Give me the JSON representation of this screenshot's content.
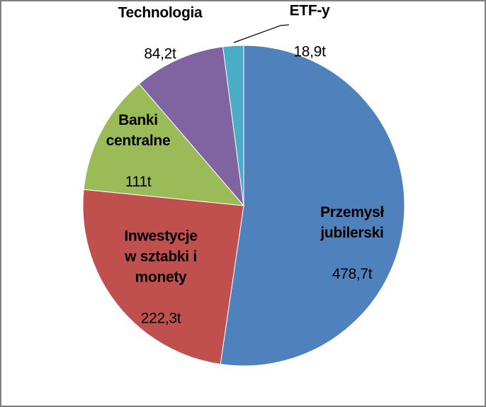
{
  "chart_data": {
    "type": "pie",
    "title": "",
    "unit": "t",
    "total_value": 915.1,
    "start_angle_deg": 0,
    "direction": "clockwise",
    "legend_position": "none",
    "data_label_style": "category name (bold) + value inside/outside slice",
    "slices": [
      {
        "label": "Przemysł jubilerski",
        "value": 478.7,
        "value_label": "478,7t",
        "color": "#4F81BD"
      },
      {
        "label": "Inwestycje w sztabki i monety",
        "value": 222.3,
        "value_label": "222,3t",
        "color": "#C0504D"
      },
      {
        "label": "Banki centralne",
        "value": 111.0,
        "value_label": "111t",
        "color": "#9BBB59"
      },
      {
        "label": "Technologia",
        "value": 84.2,
        "value_label": "84,2t",
        "color": "#8064A2"
      },
      {
        "label": "ETF-y",
        "value": 18.9,
        "value_label": "18,9t",
        "color": "#4BACC6"
      }
    ]
  },
  "labels": {
    "przemysl": {
      "name": "Przemysł\njubilerski",
      "value": "478,7t"
    },
    "inwestycje": {
      "name": "Inwestycje\nw sztabki i\nmonety",
      "value": "222,3t"
    },
    "banki": {
      "name": "Banki\ncentralne",
      "value": "111t"
    },
    "technologia": {
      "name": "Technologia",
      "value": "84,2t"
    },
    "etf": {
      "name": "ETF-y",
      "value": "18,9t"
    }
  },
  "colors": {
    "frame_border": "#7f7f7f",
    "leader_line": "#000000",
    "label_text": "#000000",
    "slice_separator": "#ffffff"
  }
}
